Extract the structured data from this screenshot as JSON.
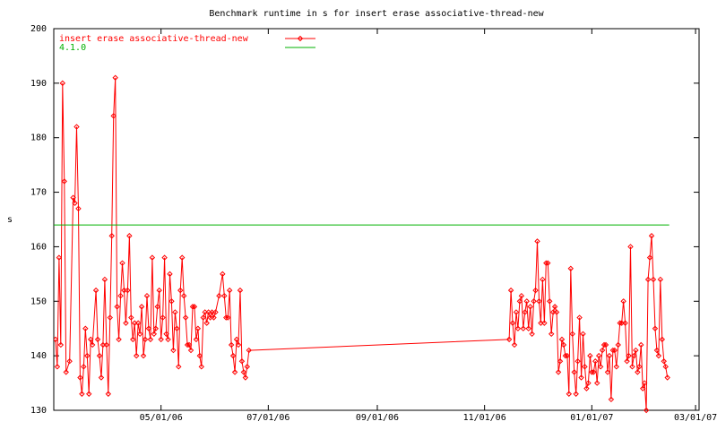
{
  "chart_data": {
    "type": "line",
    "title": "Benchmark runtime in s for insert erase associative-thread-new",
    "y_label": "s",
    "series": [
      {
        "name": "insert erase associative-thread-new",
        "color": "#ff0000",
        "x": [
          "2006-03-02",
          "2006-03-03",
          "2006-03-04",
          "2006-03-05",
          "2006-03-06",
          "2006-03-07",
          "2006-03-08",
          "2006-03-10",
          "2006-03-12",
          "2006-03-13",
          "2006-03-14",
          "2006-03-15",
          "2006-03-16",
          "2006-03-17",
          "2006-03-18",
          "2006-03-19",
          "2006-03-20",
          "2006-03-21",
          "2006-03-22",
          "2006-03-23",
          "2006-03-25",
          "2006-03-26",
          "2006-03-27",
          "2006-03-28",
          "2006-03-29",
          "2006-03-30",
          "2006-03-31",
          "2006-04-01",
          "2006-04-02",
          "2006-04-03",
          "2006-04-04",
          "2006-04-05",
          "2006-04-06",
          "2006-04-07",
          "2006-04-08",
          "2006-04-09",
          "2006-04-10",
          "2006-04-11",
          "2006-04-12",
          "2006-04-13",
          "2006-04-14",
          "2006-04-15",
          "2006-04-16",
          "2006-04-17",
          "2006-04-18",
          "2006-04-19",
          "2006-04-20",
          "2006-04-21",
          "2006-04-22",
          "2006-04-23",
          "2006-04-24",
          "2006-04-25",
          "2006-04-26",
          "2006-04-27",
          "2006-04-28",
          "2006-04-29",
          "2006-04-30",
          "2006-05-01",
          "2006-05-02",
          "2006-05-03",
          "2006-05-04",
          "2006-05-05",
          "2006-05-06",
          "2006-05-07",
          "2006-05-08",
          "2006-05-09",
          "2006-05-10",
          "2006-05-11",
          "2006-05-12",
          "2006-05-13",
          "2006-05-14",
          "2006-05-15",
          "2006-05-16",
          "2006-05-17",
          "2006-05-18",
          "2006-05-19",
          "2006-05-20",
          "2006-05-21",
          "2006-05-22",
          "2006-05-23",
          "2006-05-24",
          "2006-05-25",
          "2006-05-26",
          "2006-05-27",
          "2006-05-28",
          "2006-05-29",
          "2006-05-30",
          "2006-05-31",
          "2006-06-01",
          "2006-06-03",
          "2006-06-05",
          "2006-06-06",
          "2006-06-07",
          "2006-06-08",
          "2006-06-09",
          "2006-06-10",
          "2006-06-11",
          "2006-06-12",
          "2006-06-13",
          "2006-06-14",
          "2006-06-15",
          "2006-06-16",
          "2006-06-17",
          "2006-06-18",
          "2006-06-19",
          "2006-06-20",
          "2006-11-15",
          "2006-11-16",
          "2006-11-17",
          "2006-11-18",
          "2006-11-19",
          "2006-11-20",
          "2006-11-21",
          "2006-11-22",
          "2006-11-23",
          "2006-11-24",
          "2006-11-25",
          "2006-11-26",
          "2006-11-27",
          "2006-11-28",
          "2006-11-29",
          "2006-11-30",
          "2006-12-01",
          "2006-12-02",
          "2006-12-03",
          "2006-12-04",
          "2006-12-05",
          "2006-12-06",
          "2006-12-07",
          "2006-12-08",
          "2006-12-09",
          "2006-12-10",
          "2006-12-11",
          "2006-12-12",
          "2006-12-13",
          "2006-12-14",
          "2006-12-15",
          "2006-12-16",
          "2006-12-17",
          "2006-12-18",
          "2006-12-19",
          "2006-12-20",
          "2006-12-21",
          "2006-12-22",
          "2006-12-23",
          "2006-12-24",
          "2006-12-25",
          "2006-12-26",
          "2006-12-27",
          "2006-12-28",
          "2006-12-29",
          "2006-12-30",
          "2006-12-31",
          "2007-01-01",
          "2007-01-02",
          "2007-01-03",
          "2007-01-04",
          "2007-01-05",
          "2007-01-06",
          "2007-01-07",
          "2007-01-08",
          "2007-01-09",
          "2007-01-10",
          "2007-01-11",
          "2007-01-12",
          "2007-01-13",
          "2007-01-14",
          "2007-01-15",
          "2007-01-16",
          "2007-01-17",
          "2007-01-18",
          "2007-01-19",
          "2007-01-20",
          "2007-01-21",
          "2007-01-22",
          "2007-01-23",
          "2007-01-24",
          "2007-01-25",
          "2007-01-26",
          "2007-01-27",
          "2007-01-28",
          "2007-01-29",
          "2007-01-30",
          "2007-01-31",
          "2007-02-01",
          "2007-02-02",
          "2007-02-03",
          "2007-02-04",
          "2007-02-05",
          "2007-02-06",
          "2007-02-07",
          "2007-02-08",
          "2007-02-09",
          "2007-02-10",
          "2007-02-11",
          "2007-02-12",
          "2007-02-13"
        ],
        "values": [
          143,
          138,
          158,
          142,
          190,
          172,
          137,
          139,
          169,
          168,
          182,
          167,
          136,
          133,
          138,
          145,
          140,
          133,
          143,
          142,
          152,
          143,
          140,
          136,
          142,
          154,
          142,
          133,
          147,
          162,
          184,
          191,
          149,
          143,
          151,
          157,
          152,
          146,
          152,
          162,
          147,
          143,
          146,
          140,
          146,
          144,
          149,
          140,
          143,
          151,
          145,
          143,
          158,
          144,
          145,
          149,
          152,
          143,
          147,
          158,
          144,
          143,
          155,
          150,
          141,
          148,
          145,
          138,
          152,
          158,
          151,
          147,
          142,
          142,
          141,
          149,
          149,
          143,
          145,
          140,
          138,
          147,
          148,
          146,
          148,
          147,
          148,
          147,
          148,
          151,
          155,
          151,
          147,
          147,
          152,
          142,
          140,
          137,
          143,
          142,
          152,
          139,
          137,
          136,
          138,
          141,
          143,
          152,
          146,
          142,
          148,
          145,
          150,
          151,
          145,
          148,
          150,
          145,
          149,
          144,
          150,
          152,
          161,
          150,
          146,
          154,
          146,
          157,
          157,
          150,
          144,
          148,
          149,
          148,
          137,
          139,
          143,
          142,
          140,
          140,
          133,
          156,
          144,
          137,
          133,
          139,
          147,
          136,
          144,
          138,
          134,
          135,
          140,
          137,
          137,
          139,
          135,
          140,
          138,
          141,
          142,
          142,
          137,
          140,
          132,
          141,
          141,
          138,
          142,
          146,
          146,
          150,
          146,
          139,
          140,
          160,
          138,
          140,
          141,
          137,
          138,
          142,
          134,
          135,
          130,
          154,
          158,
          162,
          154,
          145,
          141,
          140,
          154,
          143,
          139,
          138,
          136
        ]
      }
    ],
    "reference_lines": [
      {
        "name": "4.1.0",
        "value": 164,
        "color": "#00b000"
      }
    ],
    "xlim": [
      "2006-03-01",
      "2007-03-03"
    ],
    "xticks": [
      {
        "value": "2006-05-01",
        "label": "05/01/06"
      },
      {
        "value": "2006-07-01",
        "label": "07/01/06"
      },
      {
        "value": "2006-09-01",
        "label": "09/01/06"
      },
      {
        "value": "2006-11-01",
        "label": "11/01/06"
      },
      {
        "value": "2007-01-01",
        "label": "01/01/07"
      },
      {
        "value": "2007-03-01",
        "label": "03/01/07"
      }
    ],
    "ylim": [
      130,
      200
    ],
    "yticks": [
      130,
      140,
      150,
      160,
      170,
      180,
      190,
      200
    ],
    "legend": "top-left"
  }
}
